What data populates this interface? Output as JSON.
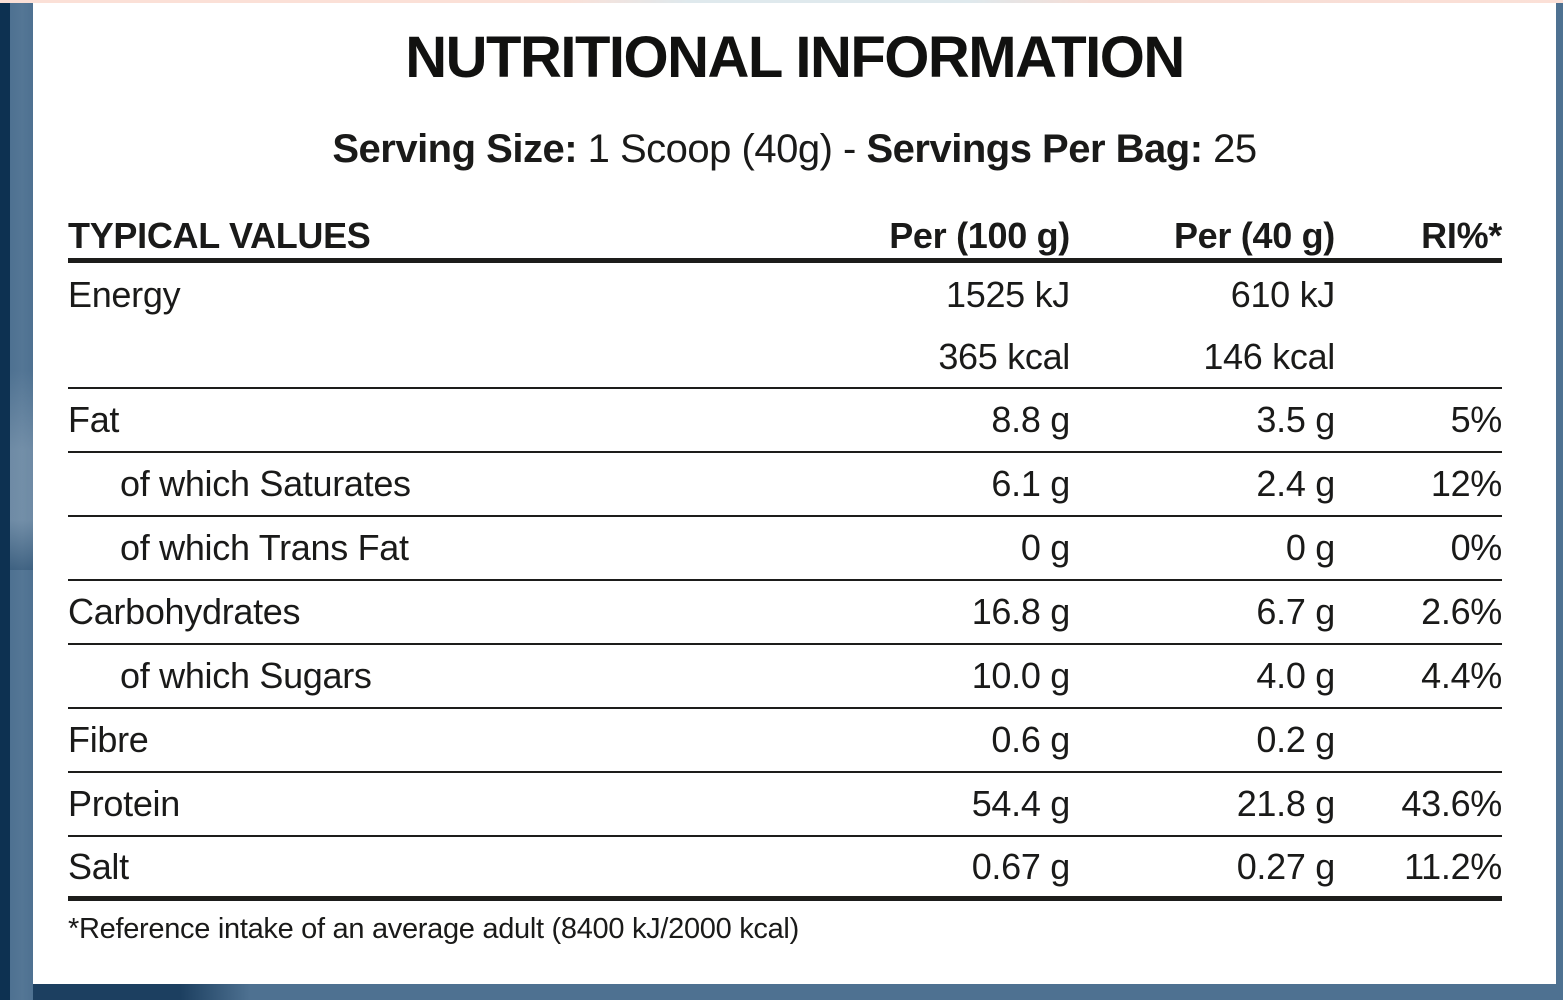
{
  "title": "NUTRITIONAL INFORMATION",
  "serving": {
    "label1": "Serving Size:",
    "value1": " 1 Scoop (40g) - ",
    "label2": "Servings Per Bag:",
    "value2": " 25"
  },
  "table": {
    "headers": {
      "label": "TYPICAL VALUES",
      "per100": "Per (100 g)",
      "per40": "Per (40 g)",
      "ri": "RI%*"
    },
    "rows": [
      {
        "label": "Energy",
        "indent": false,
        "per100": "1525 kJ",
        "per40": "610 kJ",
        "ri": "",
        "sep": "none",
        "sub": true
      },
      {
        "label": "",
        "indent": false,
        "per100": "365 kcal",
        "per40": "146 kcal",
        "ri": "",
        "sep": "thin",
        "sub": true
      },
      {
        "label": "Fat",
        "indent": false,
        "per100": "8.8 g",
        "per40": "3.5 g",
        "ri": "5%",
        "sep": "thin",
        "sub": false
      },
      {
        "label": "of which Saturates",
        "indent": true,
        "per100": "6.1 g",
        "per40": "2.4 g",
        "ri": "12%",
        "sep": "thin",
        "sub": false
      },
      {
        "label": "of which Trans Fat",
        "indent": true,
        "per100": "0 g",
        "per40": "0 g",
        "ri": "0%",
        "sep": "thin",
        "sub": false
      },
      {
        "label": "Carbohydrates",
        "indent": false,
        "per100": "16.8 g",
        "per40": "6.7 g",
        "ri": "2.6%",
        "sep": "thin",
        "sub": false
      },
      {
        "label": "of which Sugars",
        "indent": true,
        "per100": "10.0 g",
        "per40": "4.0 g",
        "ri": "4.4%",
        "sep": "thin",
        "sub": false
      },
      {
        "label": "Fibre",
        "indent": false,
        "per100": "0.6 g",
        "per40": "0.2 g",
        "ri": "",
        "sep": "thin",
        "sub": false
      },
      {
        "label": "Protein",
        "indent": false,
        "per100": "54.4 g",
        "per40": "21.8 g",
        "ri": "43.6%",
        "sep": "thin",
        "sub": false
      },
      {
        "label": "Salt",
        "indent": false,
        "per100": "0.67 g",
        "per40": "0.27 g",
        "ri": "11.2%",
        "sep": "thick",
        "sub": false
      }
    ]
  },
  "footnote": "*Reference intake of an average adult (8400 kJ/2000 kcal)",
  "colors": {
    "frame_navy": "#0d3151",
    "frame_slate": "#4e7191",
    "top_strip_pink": "#fbe0d7",
    "rule_black": "#1d1d1b",
    "text": "#1a1a19",
    "panel_bg": "#ffffff"
  }
}
